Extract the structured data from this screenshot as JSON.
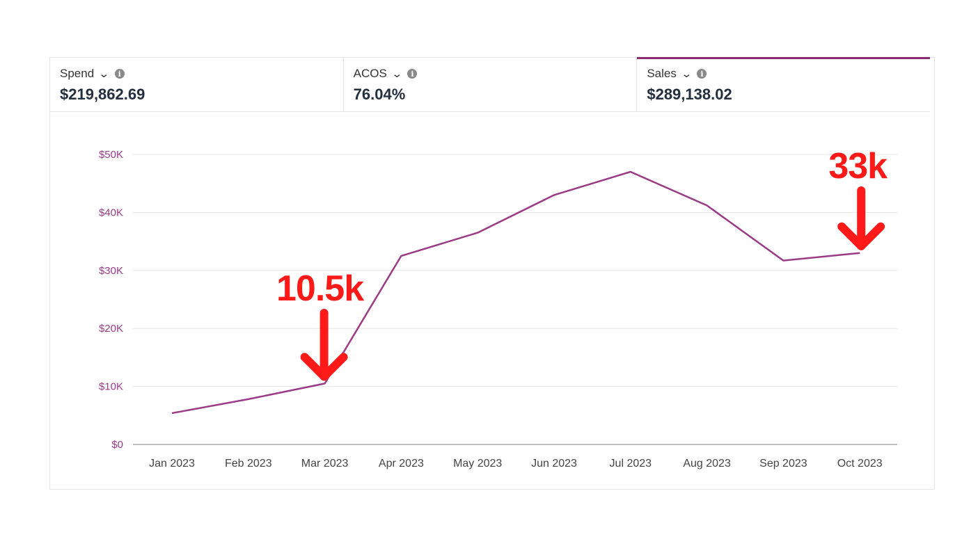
{
  "metrics": [
    {
      "label": "Spend",
      "value": "$219,862.69"
    },
    {
      "label": "ACOS",
      "value": "76.04%"
    },
    {
      "label": "Sales",
      "value": "$289,138.02"
    }
  ],
  "colors": {
    "series": "#9b3b87",
    "accent": "#8c2a72",
    "annotation": "#ff1a1a",
    "grid": "#e6e6e6"
  },
  "chart_data": {
    "type": "line",
    "categories": [
      "Jan 2023",
      "Feb 2023",
      "Mar 2023",
      "Apr 2023",
      "May 2023",
      "Jun 2023",
      "Jul 2023",
      "Aug 2023",
      "Sep 2023",
      "Oct 2023"
    ],
    "series": [
      {
        "name": "Sales",
        "values": [
          5400,
          7800,
          10500,
          32500,
          36500,
          43000,
          47000,
          41200,
          31700,
          33000
        ]
      }
    ],
    "yticks": [
      "$0",
      "$10K",
      "$20K",
      "$30K",
      "$40K",
      "$50K"
    ],
    "ylim": [
      0,
      50000
    ],
    "grid": true,
    "annotations": [
      {
        "text": "10.5k",
        "category": "Mar 2023"
      },
      {
        "text": "33k",
        "category": "Oct 2023"
      }
    ]
  }
}
